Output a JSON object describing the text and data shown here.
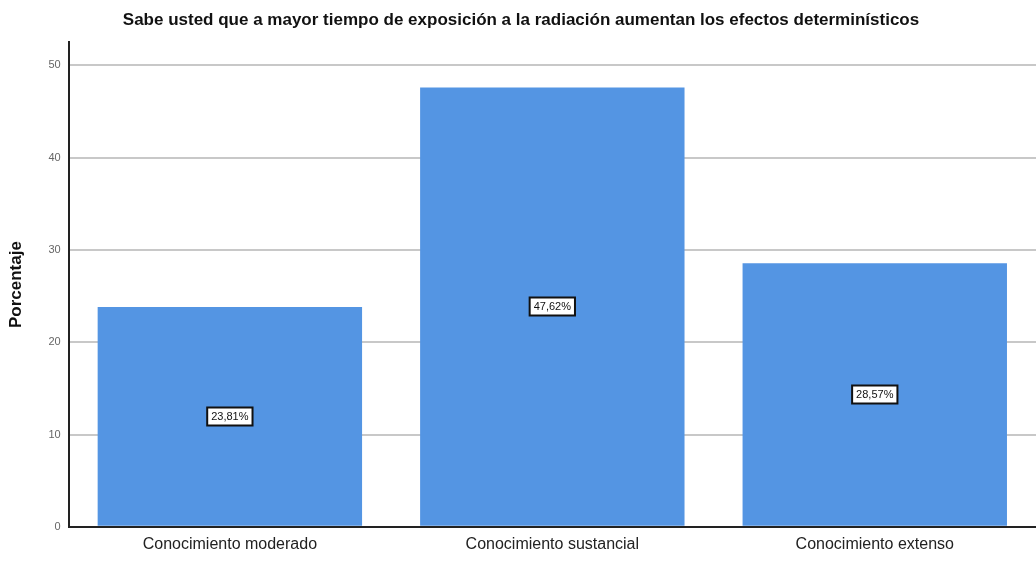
{
  "chart_data": {
    "type": "bar",
    "title": "Sabe usted que a mayor tiempo de exposición a la radiación aumentan los efectos determinísticos",
    "ylabel": "Porcentaje",
    "categories": [
      "Conocimiento moderado",
      "Conocimiento sustancial",
      "Conocimiento extenso"
    ],
    "values": [
      23.81,
      47.62,
      28.57
    ],
    "value_labels": [
      "23,81%",
      "47,62%",
      "28,57%"
    ],
    "color": "#5495e3",
    "ylim": [
      0,
      52.5
    ],
    "yticks": [
      0,
      10,
      20,
      30,
      40,
      50
    ],
    "grid": "y"
  }
}
